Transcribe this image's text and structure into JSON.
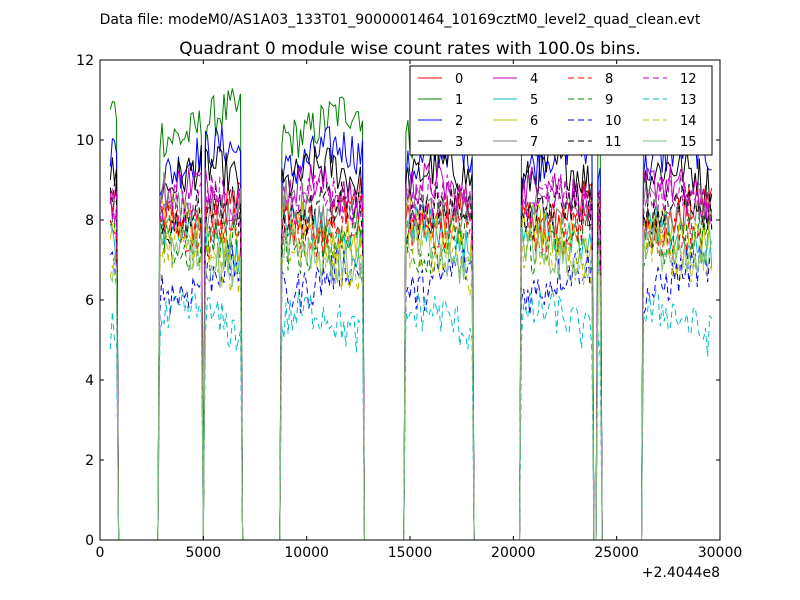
{
  "figure": {
    "suptitle": "Data file: modeM0/AS1A03_133T01_9000001464_10169cztM0_level2_quad_clean.evt"
  },
  "chart_data": {
    "type": "line",
    "title": "Quadrant 0 module wise count rates with 100.0s bins.",
    "xlabel": "",
    "ylabel": "",
    "x_offset_label": "+2.4044e8",
    "xlim": [
      0,
      30000
    ],
    "ylim": [
      0,
      12
    ],
    "xticks": [
      0,
      5000,
      10000,
      15000,
      20000,
      25000,
      30000
    ],
    "xtick_labels": [
      "0",
      "5000",
      "10000",
      "15000",
      "20000",
      "25000",
      "30000"
    ],
    "yticks": [
      0,
      2,
      4,
      6,
      8,
      10,
      12
    ],
    "ytick_labels": [
      "0",
      "2",
      "4",
      "6",
      "8",
      "10",
      "12"
    ],
    "grid": false,
    "legend_position": "top-right",
    "legend_columns": 4,
    "bin_width": 100,
    "x_start": 500,
    "x_end": 29600,
    "active_intervals": [
      [
        500,
        850
      ],
      [
        2900,
        4950
      ],
      [
        5050,
        6800
      ],
      [
        8800,
        11200
      ],
      [
        11300,
        12700
      ],
      [
        14800,
        17300
      ],
      [
        17400,
        18000
      ],
      [
        20400,
        23400
      ],
      [
        23500,
        23800
      ],
      [
        24100,
        24200
      ],
      [
        26300,
        29600
      ]
    ],
    "series": [
      {
        "name": "0",
        "color": "#ff0000",
        "dash": "solid",
        "level": 8.2
      },
      {
        "name": "1",
        "color": "#008000",
        "dash": "solid",
        "level": 10.4
      },
      {
        "name": "2",
        "color": "#0000ff",
        "dash": "solid",
        "level": 9.5
      },
      {
        "name": "3",
        "color": "#000000",
        "dash": "solid",
        "level": 9.0
      },
      {
        "name": "4",
        "color": "#bf00bf",
        "dash": "solid",
        "level": 8.6
      },
      {
        "name": "5",
        "color": "#00bfbf",
        "dash": "solid",
        "level": 7.6
      },
      {
        "name": "6",
        "color": "#bfbf00",
        "dash": "solid",
        "level": 7.8
      },
      {
        "name": "7",
        "color": "#808080",
        "dash": "solid",
        "level": 8.4
      },
      {
        "name": "8",
        "color": "#ff0000",
        "dash": "dashed",
        "level": 7.9
      },
      {
        "name": "9",
        "color": "#008000",
        "dash": "dashed",
        "level": 7.5
      },
      {
        "name": "10",
        "color": "#0000ff",
        "dash": "dashed",
        "level": 6.5
      },
      {
        "name": "11",
        "color": "#000000",
        "dash": "dashed",
        "level": 8.1
      },
      {
        "name": "12",
        "color": "#bf00bf",
        "dash": "dashed",
        "level": 8.3
      },
      {
        "name": "13",
        "color": "#00bfbf",
        "dash": "dashed",
        "level": 5.4
      },
      {
        "name": "14",
        "color": "#bfbf00",
        "dash": "dashed",
        "level": 7.0
      },
      {
        "name": "15",
        "color": "#80c080",
        "dash": "solid",
        "level": 7.2
      }
    ]
  }
}
